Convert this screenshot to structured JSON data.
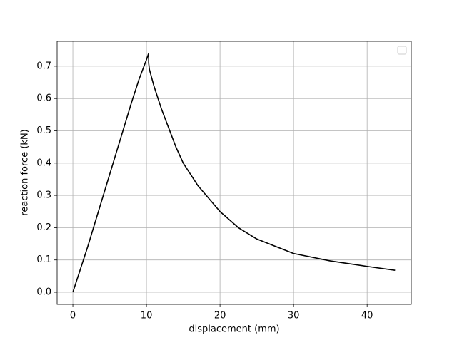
{
  "chart_data": {
    "type": "line",
    "x_label": "displacement (mm)",
    "y_label": "reaction force (kN)",
    "x": [
      0,
      2,
      4,
      6,
      8,
      9,
      10,
      10.3,
      10.3,
      10.4,
      11,
      12,
      13,
      14,
      15,
      17,
      20,
      22.5,
      25,
      30,
      35,
      40,
      43.8
    ],
    "values": [
      0,
      0.14,
      0.29,
      0.44,
      0.59,
      0.66,
      0.72,
      0.74,
      0.71,
      0.69,
      0.64,
      0.57,
      0.51,
      0.45,
      0.4,
      0.33,
      0.25,
      0.2,
      0.165,
      0.12,
      0.097,
      0.08,
      0.068
    ],
    "color": "#000000",
    "xlim": [
      -2.14,
      46.0
    ],
    "ylim": [
      -0.0375,
      0.777
    ],
    "xticks": [
      0,
      10,
      20,
      30,
      40
    ],
    "yticks": [
      {
        "value": 0,
        "label": "0.0"
      },
      0.1,
      0.2,
      0.3,
      0.4,
      0.5,
      0.6,
      0.7
    ],
    "grid": true
  }
}
